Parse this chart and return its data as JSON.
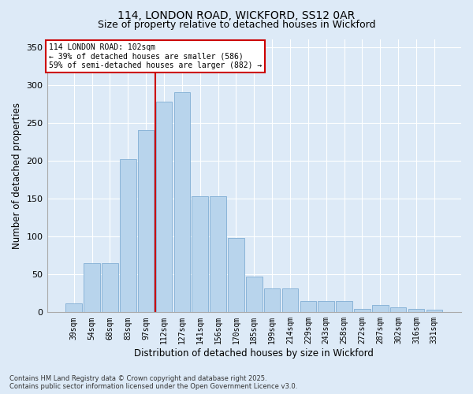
{
  "title1": "114, LONDON ROAD, WICKFORD, SS12 0AR",
  "title2": "Size of property relative to detached houses in Wickford",
  "xlabel": "Distribution of detached houses by size in Wickford",
  "ylabel": "Number of detached properties",
  "categories": [
    "39sqm",
    "54sqm",
    "68sqm",
    "83sqm",
    "97sqm",
    "112sqm",
    "127sqm",
    "141sqm",
    "156sqm",
    "170sqm",
    "185sqm",
    "199sqm",
    "214sqm",
    "229sqm",
    "243sqm",
    "258sqm",
    "272sqm",
    "287sqm",
    "302sqm",
    "316sqm",
    "331sqm"
  ],
  "values": [
    12,
    65,
    65,
    202,
    240,
    278,
    290,
    153,
    153,
    98,
    47,
    32,
    32,
    15,
    15,
    15,
    4,
    10,
    7,
    4,
    3
  ],
  "bar_color": "#b8d4ec",
  "bar_edge_color": "#80aed4",
  "vline_color": "#cc0000",
  "vline_pos": 4.5,
  "annotation_text": "114 LONDON ROAD: 102sqm\n← 39% of detached houses are smaller (586)\n59% of semi-detached houses are larger (882) →",
  "background_color": "#ddeaf7",
  "grid_color": "#ffffff",
  "footer1": "Contains HM Land Registry data © Crown copyright and database right 2025.",
  "footer2": "Contains public sector information licensed under the Open Government Licence v3.0.",
  "ylim": [
    0,
    360
  ],
  "yticks": [
    0,
    50,
    100,
    150,
    200,
    250,
    300,
    350
  ]
}
